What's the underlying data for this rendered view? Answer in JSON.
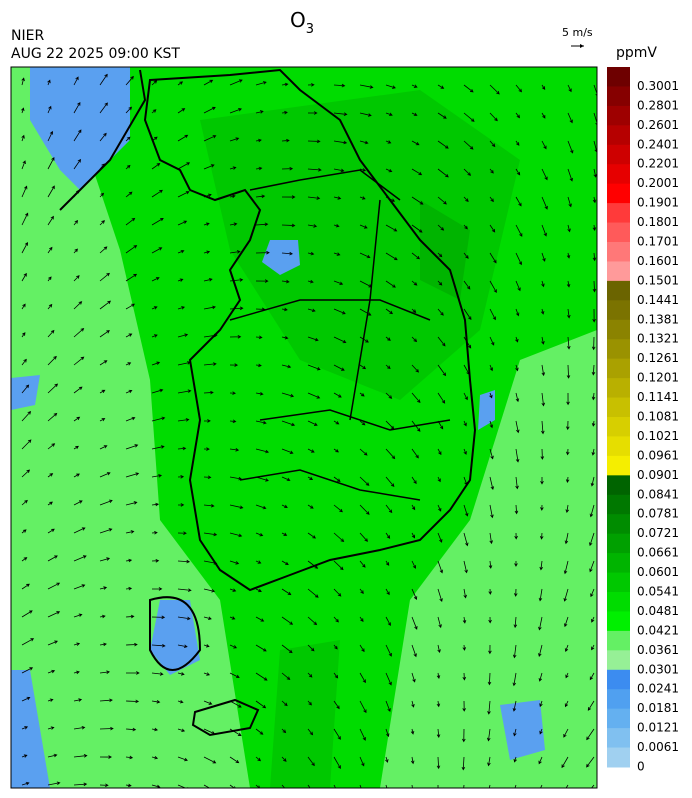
{
  "header": {
    "agency": "NIER",
    "datetime": "AUG 22 2025 09:00 KST",
    "title": {
      "text": "O",
      "subscript": "3"
    },
    "wind_scale": "5 m/s"
  },
  "colorbar": {
    "unit": "ppmV",
    "levels": [
      {
        "label": "0.3001",
        "color": "#6e0000"
      },
      {
        "label": "0.2801",
        "color": "#860000"
      },
      {
        "label": "0.2601",
        "color": "#9e0000"
      },
      {
        "label": "0.2401",
        "color": "#b60000"
      },
      {
        "label": "0.2201",
        "color": "#ce0000"
      },
      {
        "label": "0.2001",
        "color": "#e60000"
      },
      {
        "label": "0.1901",
        "color": "#ff0000"
      },
      {
        "label": "0.1801",
        "color": "#ff3a3a"
      },
      {
        "label": "0.1701",
        "color": "#ff5a5a"
      },
      {
        "label": "0.1601",
        "color": "#ff7878"
      },
      {
        "label": "0.1501",
        "color": "#ff9a9a"
      },
      {
        "label": "0.1441",
        "color": "#6b6400"
      },
      {
        "label": "0.1381",
        "color": "#7b7300"
      },
      {
        "label": "0.1321",
        "color": "#8b8300"
      },
      {
        "label": "0.1261",
        "color": "#9a9200"
      },
      {
        "label": "0.1201",
        "color": "#aaa100"
      },
      {
        "label": "0.1141",
        "color": "#b9b000"
      },
      {
        "label": "0.1081",
        "color": "#c8c000"
      },
      {
        "label": "0.1021",
        "color": "#d7cf00"
      },
      {
        "label": "0.0961",
        "color": "#e6de00"
      },
      {
        "label": "0.0901",
        "color": "#f5ee00"
      },
      {
        "label": "0.0841",
        "color": "#006400"
      },
      {
        "label": "0.0781",
        "color": "#007800"
      },
      {
        "label": "0.0721",
        "color": "#008c00"
      },
      {
        "label": "0.0661",
        "color": "#00a000"
      },
      {
        "label": "0.0601",
        "color": "#00b400"
      },
      {
        "label": "0.0541",
        "color": "#00c800"
      },
      {
        "label": "0.0481",
        "color": "#00dc00"
      },
      {
        "label": "0.0421",
        "color": "#00f000"
      },
      {
        "label": "0.0361",
        "color": "#64f064"
      },
      {
        "label": "0.0301",
        "color": "#96f096"
      },
      {
        "label": "0.0241",
        "color": "#3c8cf0"
      },
      {
        "label": "0.0181",
        "color": "#50a0f0"
      },
      {
        "label": "0.0121",
        "color": "#64b0f0"
      },
      {
        "label": "0.0061",
        "color": "#80c0f0"
      },
      {
        "label": "0",
        "color": "#a0d0f0"
      }
    ]
  }
}
